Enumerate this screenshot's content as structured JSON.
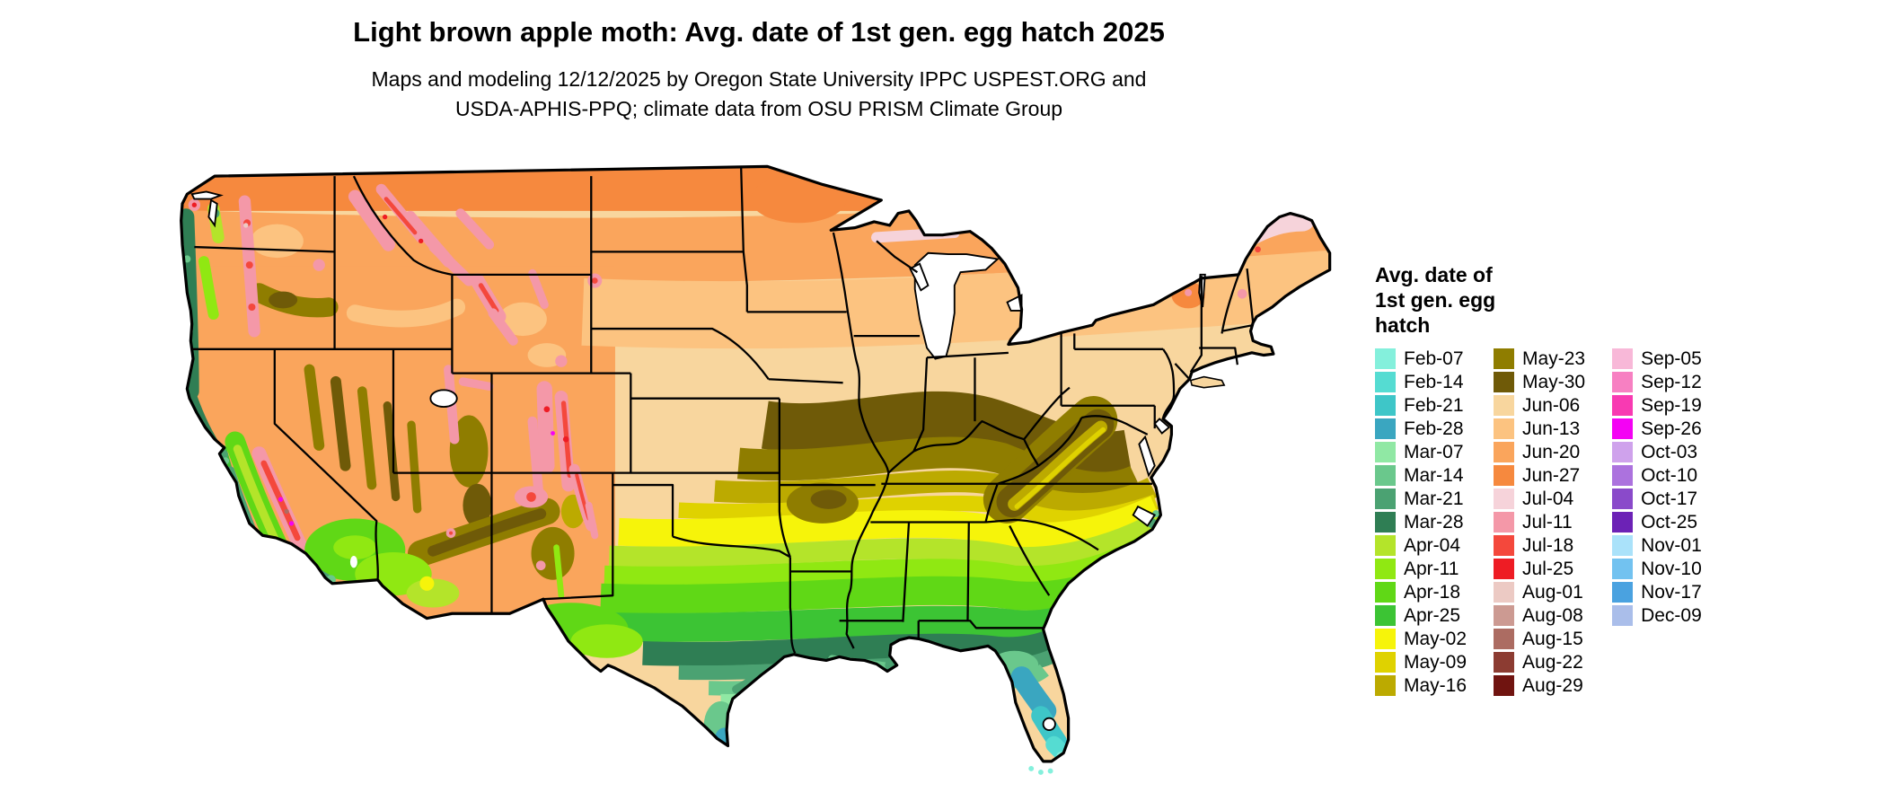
{
  "header": {
    "title": "Light brown apple moth: Avg. date of 1st gen. egg hatch 2025",
    "subtitle_line1": "Maps and modeling 12/12/2025 by Oregon State University IPPC USPEST.ORG and",
    "subtitle_line2": "USDA-APHIS-PPQ; climate data from OSU PRISM Climate Group"
  },
  "legend": {
    "title_lines": [
      "Avg. date of",
      "1st gen. egg",
      "hatch"
    ],
    "columns": [
      [
        "Feb-07",
        "Feb-14",
        "Feb-21",
        "Feb-28",
        "Mar-07",
        "Mar-14",
        "Mar-21",
        "Mar-28",
        "Apr-04",
        "Apr-11",
        "Apr-18",
        "Apr-25",
        "May-02",
        "May-09",
        "May-16"
      ],
      [
        "May-23",
        "May-30",
        "Jun-06",
        "Jun-13",
        "Jun-20",
        "Jun-27",
        "Jul-04",
        "Jul-11",
        "Jul-18",
        "Jul-25",
        "Aug-01",
        "Aug-08",
        "Aug-15",
        "Aug-22",
        "Aug-29"
      ],
      [
        "Sep-05",
        "Sep-12",
        "Sep-19",
        "Sep-26",
        "Oct-03",
        "Oct-10",
        "Oct-17",
        "Oct-25",
        "Nov-01",
        "Nov-10",
        "Nov-17",
        "Dec-09"
      ]
    ],
    "colors": {
      "Feb-07": "#84f0dc",
      "Feb-14": "#55dcd2",
      "Feb-21": "#3ec6c8",
      "Feb-28": "#3aa6c0",
      "Mar-07": "#90e8a4",
      "Mar-14": "#6ac88c",
      "Mar-21": "#4ba272",
      "Mar-28": "#2f7e54",
      "Apr-04": "#b4e42a",
      "Apr-11": "#90e812",
      "Apr-18": "#60d816",
      "Apr-25": "#3cc434",
      "May-02": "#f6f40a",
      "May-09": "#dfd200",
      "May-16": "#bcaa00",
      "May-23": "#8f7d00",
      "May-30": "#6f5a08",
      "Jun-06": "#f8d69e",
      "Jun-13": "#fcc380",
      "Jun-20": "#faa55c",
      "Jun-27": "#f6893e",
      "Jul-04": "#f6d3da",
      "Jul-11": "#f498a8",
      "Jul-18": "#f4483c",
      "Jul-25": "#ee1c24",
      "Aug-01": "#eccac4",
      "Aug-08": "#cc9a92",
      "Aug-15": "#ac6c62",
      "Aug-22": "#8c3c32",
      "Aug-29": "#701410",
      "Sep-05": "#f8b8d8",
      "Sep-12": "#f780c2",
      "Sep-19": "#f83ab2",
      "Sep-26": "#f402f4",
      "Oct-03": "#cfa2ec",
      "Oct-10": "#ac72de",
      "Oct-17": "#8a4aca",
      "Oct-25": "#6c22b6",
      "Nov-01": "#aae2fa",
      "Nov-10": "#72c2f0",
      "Nov-17": "#4aa2e0",
      "Dec-09": "#aabeea"
    }
  }
}
